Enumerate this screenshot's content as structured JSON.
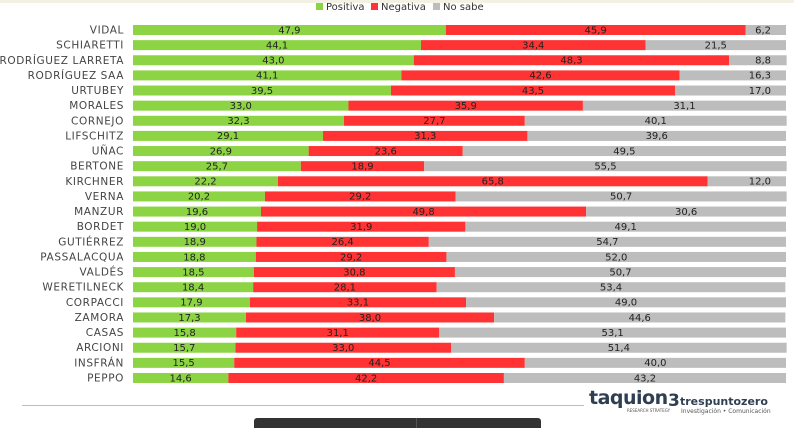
{
  "legend": {
    "positiva": "Positiva",
    "negativa": "Negativa",
    "no_sabe": "No sabe"
  },
  "colors": {
    "positiva": "#8dd445",
    "negativa": "#ff3333",
    "no_sabe": "#bdbdbd"
  },
  "chart_data": {
    "type": "bar",
    "orientation": "horizontal",
    "stacked": true,
    "percent_total": 100,
    "title": "",
    "xlabel": "",
    "ylabel": "",
    "legend_position": "top-right",
    "categories": [
      "VIDAL",
      "SCHIARETTI",
      "RODRÍGUEZ LARRETA",
      "RODRÍGUEZ SAA",
      "URTUBEY",
      "MORALES",
      "CORNEJO",
      "LIFSCHITZ",
      "UÑAC",
      "BERTONE",
      "KIRCHNER",
      "VERNA",
      "MANZUR",
      "BORDET",
      "GUTIÉRREZ",
      "PASSALACQUA",
      "VALDÉS",
      "WERETILNECK",
      "CORPACCI",
      "ZAMORA",
      "CASAS",
      "ARCIONI",
      "INSFRÁN",
      "PEPPO"
    ],
    "series": [
      {
        "name": "Positiva",
        "values": [
          47.9,
          44.1,
          43.0,
          41.1,
          39.5,
          33.0,
          32.3,
          29.1,
          26.9,
          25.7,
          22.2,
          20.2,
          19.6,
          19.0,
          18.9,
          18.8,
          18.5,
          18.4,
          17.9,
          17.3,
          15.8,
          15.7,
          15.5,
          14.6
        ]
      },
      {
        "name": "Negativa",
        "values": [
          45.9,
          34.4,
          48.3,
          42.6,
          43.5,
          35.9,
          27.7,
          31.3,
          23.6,
          18.9,
          65.8,
          29.2,
          49.8,
          31.9,
          26.4,
          29.2,
          30.8,
          28.1,
          33.1,
          38.0,
          31.1,
          33.0,
          44.5,
          42.2
        ]
      },
      {
        "name": "No sabe",
        "values": [
          6.2,
          21.5,
          8.8,
          16.3,
          17.0,
          31.1,
          40.1,
          39.6,
          49.5,
          55.5,
          12.0,
          50.7,
          30.6,
          49.1,
          54.7,
          52.0,
          50.7,
          53.4,
          49.0,
          44.6,
          53.1,
          51.4,
          40.0,
          43.2
        ]
      }
    ],
    "labels": {
      "Positiva": [
        "47,9",
        "44,1",
        "43,0",
        "41,1",
        "39,5",
        "33,0",
        "32,3",
        "29,1",
        "26,9",
        "25,7",
        "22,2",
        "20,2",
        "19,6",
        "19,0",
        "18,9",
        "18,8",
        "18,5",
        "18,4",
        "17,9",
        "17,3",
        "15,8",
        "15,7",
        "15,5",
        "14,6"
      ],
      "Negativa": [
        "45,9",
        "34,4",
        "48,3",
        "42,6",
        "43,5",
        "35,9",
        "27,7",
        "31,3",
        "23,6",
        "18,9",
        "65,8",
        "29,2",
        "49,8",
        "31,9",
        "26,4",
        "29,2",
        "30,8",
        "28,1",
        "33,1",
        "38,0",
        "31,1",
        "33,0",
        "44,5",
        "42,2"
      ],
      "No sabe": [
        "6,2",
        "21,5",
        "8,8",
        "16,3",
        "17,0",
        "31,1",
        "40,1",
        "39,6",
        "49,5",
        "55,5",
        "12,0",
        "50,7",
        "30,6",
        "49,1",
        "54,7",
        "52,0",
        "50,7",
        "53,4",
        "49,0",
        "44,6",
        "53,1",
        "51,4",
        "40,0",
        "43,2"
      ]
    }
  },
  "footer": {
    "logo_taquion": "taquion",
    "logo_taquion_sub": "RESEARCH STRATEGY",
    "logo_tpz_mark": "3",
    "logo_tpz_name": "trespuntozero",
    "logo_tpz_tagline": "Investigación • Comunicación"
  }
}
